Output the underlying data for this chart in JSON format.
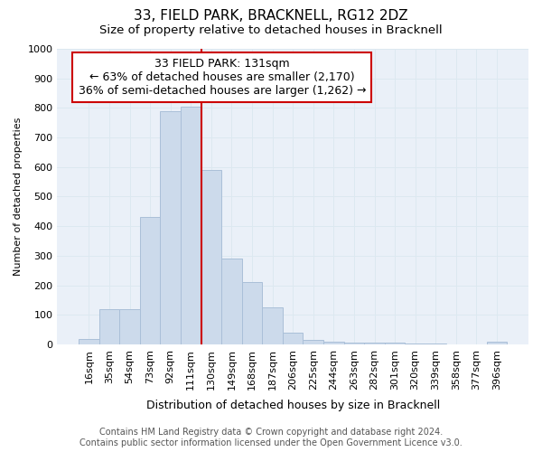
{
  "title": "33, FIELD PARK, BRACKNELL, RG12 2DZ",
  "subtitle": "Size of property relative to detached houses in Bracknell",
  "xlabel": "Distribution of detached houses by size in Bracknell",
  "ylabel": "Number of detached properties",
  "bar_labels": [
    "16sqm",
    "35sqm",
    "54sqm",
    "73sqm",
    "92sqm",
    "111sqm",
    "130sqm",
    "149sqm",
    "168sqm",
    "187sqm",
    "206sqm",
    "225sqm",
    "244sqm",
    "263sqm",
    "282sqm",
    "301sqm",
    "320sqm",
    "339sqm",
    "358sqm",
    "377sqm",
    "396sqm"
  ],
  "bar_values": [
    18,
    120,
    120,
    430,
    790,
    805,
    590,
    290,
    212,
    125,
    40,
    15,
    10,
    5,
    5,
    5,
    3,
    2,
    0,
    0,
    8
  ],
  "bar_color": "#ccdaeb",
  "bar_edge_color": "#aabfd8",
  "annotation_box_text": "33 FIELD PARK: 131sqm\n← 63% of detached houses are smaller (2,170)\n36% of semi-detached houses are larger (1,262) →",
  "vline_x_idx": 6,
  "vline_color": "#cc0000",
  "box_edge_color": "#cc0000",
  "ylim": [
    0,
    1000
  ],
  "yticks": [
    0,
    100,
    200,
    300,
    400,
    500,
    600,
    700,
    800,
    900,
    1000
  ],
  "grid_color": "#dce8f0",
  "background_color": "#eaf0f8",
  "footer_text": "Contains HM Land Registry data © Crown copyright and database right 2024.\nContains public sector information licensed under the Open Government Licence v3.0.",
  "title_fontsize": 11,
  "subtitle_fontsize": 9.5,
  "xlabel_fontsize": 9,
  "ylabel_fontsize": 8,
  "tick_fontsize": 8,
  "annotation_fontsize": 9,
  "footer_fontsize": 7
}
